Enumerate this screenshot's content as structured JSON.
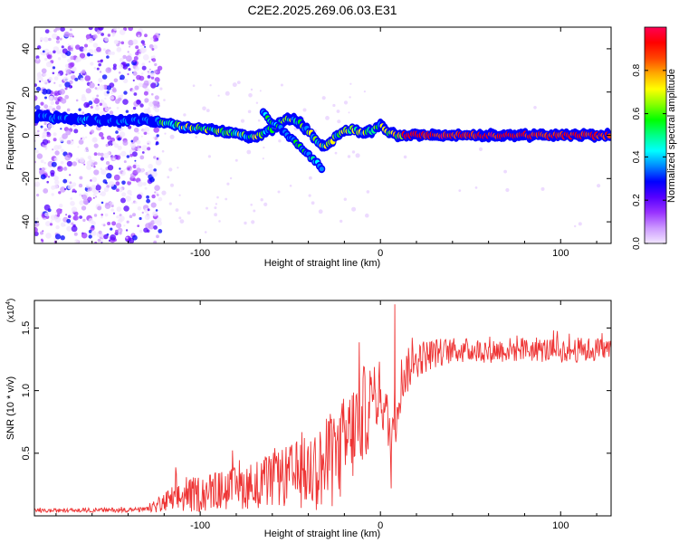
{
  "title": "C2E2.2025.269.06.03.E31",
  "chart_data": [
    {
      "type": "heatmap",
      "name": "spectrogram",
      "xlabel": "Height of straight line (km)",
      "ylabel": "Frequency (Hz)",
      "xlim": [
        -192,
        128
      ],
      "ylim": [
        -50,
        50
      ],
      "x_ticks": [
        -100,
        0,
        100
      ],
      "x_tick_labels": [
        "-100",
        "0",
        "100"
      ],
      "y_ticks": [
        -40,
        -20,
        0,
        20,
        40
      ],
      "y_tick_labels": [
        "-40",
        "-20",
        "0",
        "20",
        "40"
      ],
      "colorbar": {
        "label": "Normalized spectral amplitude",
        "range": [
          0,
          1
        ],
        "ticks": [
          0.0,
          0.2,
          0.4,
          0.6,
          0.8
        ],
        "tick_labels": [
          "0.0",
          "0.2",
          "0.4",
          "0.6",
          "0.8"
        ],
        "colors": [
          "#f2e6ff",
          "#cc99ff",
          "#9933ff",
          "#5500ff",
          "#0000ff",
          "#0088ff",
          "#00ffff",
          "#00ff88",
          "#00ff00",
          "#88ff00",
          "#ffff00",
          "#ffaa00",
          "#ff4400",
          "#ff0000",
          "#ff0055"
        ]
      },
      "ridge": {
        "x": [
          -192,
          -170,
          -150,
          -130,
          -120,
          -110,
          -100,
          -90,
          -80,
          -70,
          -60,
          -55,
          -50,
          -45,
          -40,
          -35,
          -30,
          -25,
          -20,
          -15,
          -10,
          -5,
          0,
          5,
          10,
          20,
          40,
          60,
          80,
          100,
          128
        ],
        "y": [
          9,
          7,
          7,
          7,
          6,
          4,
          3,
          2,
          1,
          -1,
          3,
          6,
          8,
          6,
          2,
          -3,
          -5,
          -1,
          2,
          3,
          1,
          2,
          5,
          1,
          0,
          0,
          0,
          0,
          0,
          0,
          0
        ]
      },
      "branch": {
        "x": [
          -65,
          -60,
          -55,
          -50,
          -45,
          -40,
          -35,
          -32
        ],
        "y": [
          10,
          6,
          3,
          -1,
          -5,
          -9,
          -13,
          -17
        ]
      },
      "noise_region": {
        "x_start": -192,
        "x_end": -122
      }
    },
    {
      "type": "line",
      "name": "snr",
      "xlabel": "Height of straight line (km)",
      "ylabel": "SNR (10 * v/v)",
      "y_multiplier_label": "(x10",
      "y_multiplier_exp": "4",
      "y_multiplier_close": ")",
      "xlim": [
        -192,
        128
      ],
      "ylim": [
        0,
        17200
      ],
      "x_ticks": [
        -100,
        0,
        100
      ],
      "x_tick_labels": [
        "-100",
        "0",
        "100"
      ],
      "y_ticks": [
        5000,
        10000,
        15000
      ],
      "y_tick_labels": [
        "0.5",
        "1.0",
        "1.5"
      ],
      "color": "#ee3333",
      "envelope": {
        "x": [
          -192,
          -130,
          -122,
          -115,
          -100,
          -80,
          -60,
          -40,
          -30,
          -20,
          -10,
          0,
          6,
          9,
          12,
          20,
          30,
          40,
          60,
          80,
          100,
          128
        ],
        "base": [
          400,
          500,
          900,
          1300,
          1800,
          2200,
          2800,
          3500,
          4000,
          5500,
          8000,
          10000,
          6000,
          9000,
          11000,
          12500,
          13000,
          13200,
          13200,
          13300,
          13200,
          13300
        ],
        "amp": [
          150,
          200,
          700,
          1200,
          1500,
          1700,
          2200,
          3000,
          3800,
          4200,
          4000,
          2500,
          2500,
          2800,
          2000,
          1500,
          1200,
          1000,
          1000,
          1000,
          1000,
          1000
        ]
      },
      "annotations": [
        {
          "x": 6,
          "y": 2200
        },
        {
          "x": 8,
          "y": 16900
        }
      ]
    }
  ]
}
